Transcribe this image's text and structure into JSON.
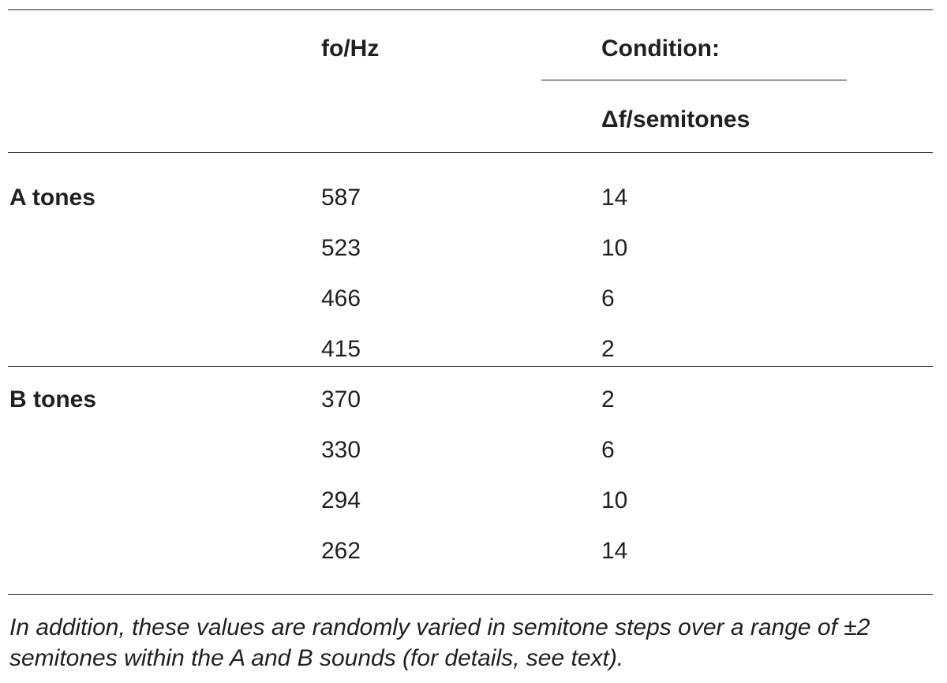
{
  "table": {
    "headers": {
      "fo": "fo/Hz",
      "condition": "Condition:",
      "delta": "Δf/semitones"
    },
    "groups": [
      {
        "label": "A tones",
        "rows": [
          [
            587,
            14
          ],
          [
            523,
            10
          ],
          [
            466,
            6
          ],
          [
            415,
            2
          ]
        ]
      },
      {
        "label": "B tones",
        "rows": [
          [
            370,
            2
          ],
          [
            330,
            6
          ],
          [
            294,
            10
          ],
          [
            262,
            14
          ]
        ]
      }
    ]
  },
  "footnote": "In addition, these values are randomly varied in semitone steps over a range of ±2 semitones within the A and B sounds (for details, see text)."
}
